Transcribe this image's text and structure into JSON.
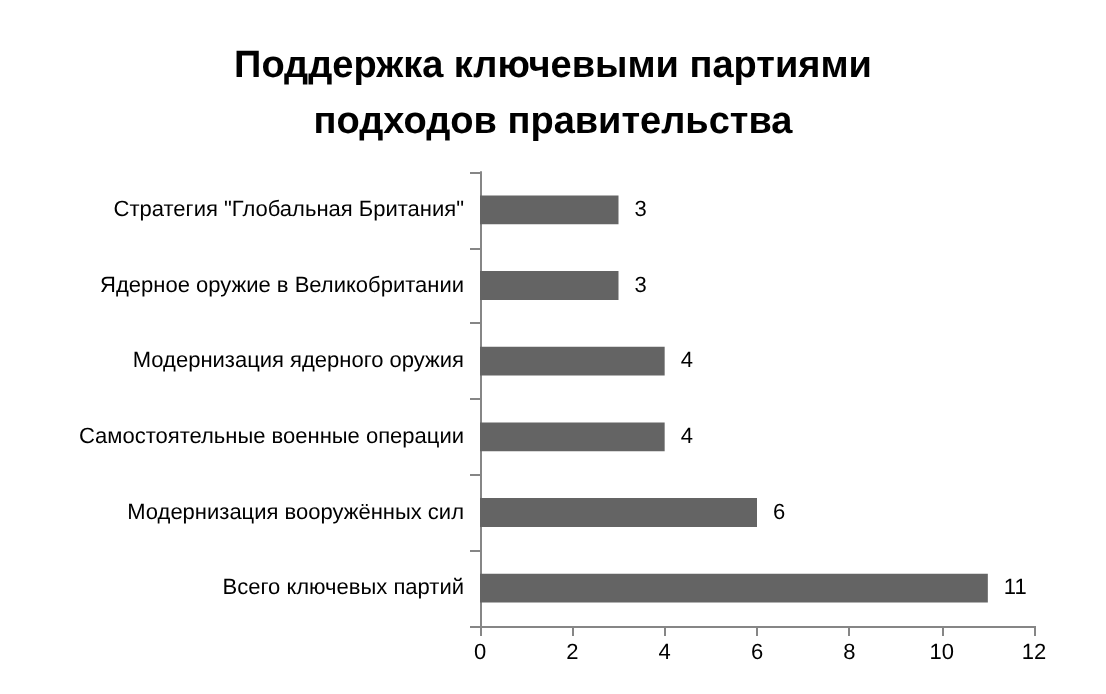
{
  "chart_data": {
    "type": "bar",
    "orientation": "horizontal",
    "title": "Поддержка ключевыми партиями\nподходов правительства",
    "categories": [
      "Стратегия \"Глобальная Британия\"",
      "Ядерное оружие в Великобритании",
      "Модернизация ядерного оружия",
      "Самостоятельные военные операции",
      "Модернизация вооружённых сил",
      "Всего ключевых партий"
    ],
    "values": [
      3,
      3,
      4,
      4,
      6,
      11
    ],
    "color": "#646464",
    "xlim": [
      0,
      12
    ],
    "xticks": [
      0,
      2,
      4,
      6,
      8,
      10,
      12
    ],
    "data_labels": true,
    "grid": false
  }
}
